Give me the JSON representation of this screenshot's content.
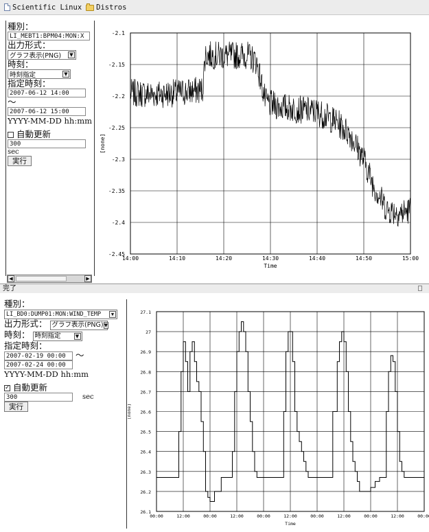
{
  "bookmarks": [
    {
      "label": "Scientific Linux",
      "icon": "page-icon"
    },
    {
      "label": "Distros",
      "icon": "folder-icon"
    }
  ],
  "top_form": {
    "kind_label": "種別：",
    "signal_value": "LI_MEBT1:BPM04:MON:X",
    "format_label": "出力形式：",
    "format_value": "グラフ表示(PNG)",
    "time_label": "時刻：",
    "time_mode_value": "時刻指定",
    "spec_time_label": "指定時刻：",
    "start_value": "2007-06-12 14:00",
    "tilde": "～",
    "end_value": "2007-06-12 15:00",
    "format_hint": "YYYY-MM-DD hh:mm",
    "auto_update_label": "自動更新",
    "auto_update_checked": false,
    "interval_value": "300",
    "interval_unit": "sec",
    "run_label": "実行"
  },
  "status_text": "完了",
  "bottom_form": {
    "kind_label": "種別：",
    "signal_value": "LI_BD0:DUMP01:MON:WIND_TEMP",
    "format_label": "出力形式：",
    "format_value": "グラフ表示(PNG)",
    "time_label": "時刻：",
    "time_mode_value": "時刻指定",
    "spec_time_label": "指定時刻：",
    "start_value": "2007-02-19 00:00",
    "tilde": "～",
    "end_value": "2007-02-24 00:00",
    "format_hint": "YYYY-MM-DD hh:mm",
    "auto_update_label": "自動更新",
    "auto_update_checked": true,
    "interval_value": "300",
    "interval_unit": "sec",
    "run_label": "実行"
  },
  "chart_data": [
    {
      "type": "line",
      "xlabel": "Time",
      "ylabel": "[none]",
      "x_ticks": [
        "14:00",
        "14:10",
        "14:20",
        "14:30",
        "14:40",
        "14:50",
        "15:00"
      ],
      "y_ticks": [
        "-2.1",
        "-2.15",
        "-2.2",
        "-2.25",
        "-2.3",
        "-2.35",
        "-2.4",
        "-2.45"
      ],
      "ylim": [
        -2.45,
        -2.1
      ],
      "grid": true,
      "series": [
        {
          "x": [
            "14:00",
            "14:05",
            "14:10",
            "14:15.5",
            "14:16",
            "14:20",
            "14:25",
            "14:27",
            "14:29",
            "14:31",
            "14:35",
            "14:40",
            "14:44",
            "14:47",
            "14:50",
            "14:52",
            "14:55",
            "14:58",
            "15:00"
          ],
          "y": [
            -2.195,
            -2.197,
            -2.195,
            -2.19,
            -2.135,
            -2.136,
            -2.135,
            -2.145,
            -2.21,
            -2.215,
            -2.22,
            -2.225,
            -2.24,
            -2.26,
            -2.3,
            -2.34,
            -2.38,
            -2.385,
            -2.38
          ]
        }
      ]
    },
    {
      "type": "line",
      "xlabel": "Time",
      "ylabel": "[none]",
      "x_ticks": [
        "00:00",
        "12:00",
        "00:00",
        "12:00",
        "00:00",
        "12:00",
        "00:00",
        "12:00",
        "00:00",
        "12:00",
        "00:00"
      ],
      "y_ticks": [
        "27.1",
        "27",
        "26.9",
        "26.8",
        "26.7",
        "26.6",
        "26.5",
        "26.4",
        "26.3",
        "26.2",
        "26.1"
      ],
      "ylim": [
        26.1,
        27.1
      ],
      "grid": true,
      "series": [
        {
          "x": [
            0,
            8,
            10,
            11,
            12,
            13,
            14,
            15,
            16,
            17,
            18,
            19,
            20,
            21,
            22,
            23,
            24,
            26,
            29,
            32,
            34,
            35,
            36,
            37,
            38,
            39,
            40,
            41,
            42,
            43,
            44,
            45,
            46,
            48,
            50,
            53,
            57,
            58,
            59,
            60,
            61,
            62,
            63,
            64,
            65,
            66,
            67,
            68,
            69,
            72,
            75,
            79,
            81,
            82,
            83,
            84,
            85,
            86,
            87,
            88,
            89,
            90,
            91,
            92,
            94,
            96,
            98,
            100,
            103,
            104,
            105,
            106,
            107,
            108,
            109,
            110,
            111,
            112,
            113,
            114,
            115,
            116,
            117,
            118,
            120
          ],
          "y": [
            26.27,
            26.27,
            26.5,
            26.8,
            26.95,
            26.85,
            26.7,
            26.9,
            26.95,
            26.85,
            26.75,
            26.7,
            26.55,
            26.4,
            26.2,
            26.17,
            26.15,
            26.2,
            26.27,
            26.27,
            26.4,
            26.7,
            26.9,
            27.0,
            27.05,
            27.0,
            26.9,
            26.7,
            26.55,
            26.4,
            26.3,
            26.27,
            26.27,
            26.27,
            26.27,
            26.27,
            26.6,
            26.9,
            27.0,
            27.0,
            26.85,
            26.6,
            26.5,
            26.45,
            26.4,
            26.35,
            26.3,
            26.27,
            26.27,
            26.27,
            26.27,
            26.6,
            26.85,
            26.95,
            27.0,
            26.95,
            26.8,
            26.6,
            26.45,
            26.35,
            26.3,
            26.25,
            26.2,
            26.2,
            26.2,
            26.22,
            26.25,
            26.27,
            26.6,
            26.8,
            26.88,
            26.85,
            26.7,
            26.5,
            26.35,
            26.3,
            26.27,
            26.27,
            26.27,
            26.27,
            26.27,
            26.27,
            26.27,
            26.27,
            26.27
          ]
        }
      ]
    }
  ]
}
